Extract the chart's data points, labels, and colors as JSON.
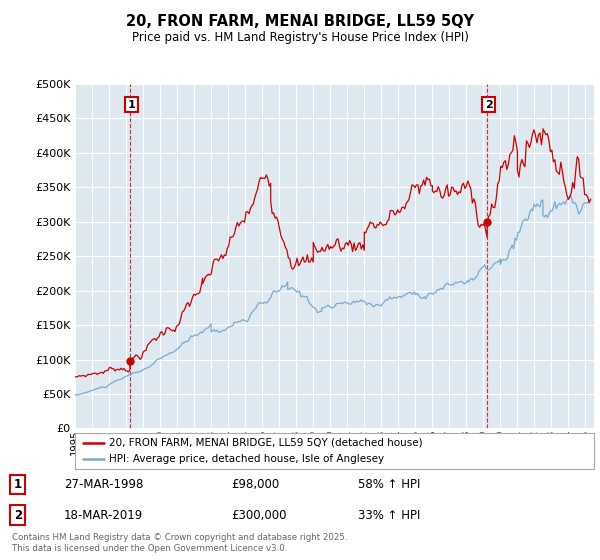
{
  "title": "20, FRON FARM, MENAI BRIDGE, LL59 5QY",
  "subtitle": "Price paid vs. HM Land Registry's House Price Index (HPI)",
  "legend_line1": "20, FRON FARM, MENAI BRIDGE, LL59 5QY (detached house)",
  "legend_line2": "HPI: Average price, detached house, Isle of Anglesey",
  "annotation1_date": "27-MAR-1998",
  "annotation1_price": "£98,000",
  "annotation1_pct": "58% ↑ HPI",
  "annotation2_date": "18-MAR-2019",
  "annotation2_price": "£300,000",
  "annotation2_pct": "33% ↑ HPI",
  "footnote": "Contains HM Land Registry data © Crown copyright and database right 2025.\nThis data is licensed under the Open Government Licence v3.0.",
  "red_color": "#cc0000",
  "blue_color": "#7aabcf",
  "chart_bg": "#dde8f0",
  "background_color": "#ffffff",
  "grid_color": "#ffffff",
  "sale1_year": 1998.23,
  "sale1_price": 98000,
  "sale2_year": 2019.22,
  "sale2_price": 300000,
  "ylim": [
    0,
    500000
  ],
  "yticks": [
    0,
    50000,
    100000,
    150000,
    200000,
    250000,
    300000,
    350000,
    400000,
    450000,
    500000
  ],
  "xlim_start": 1995.0,
  "xlim_end": 2025.5
}
